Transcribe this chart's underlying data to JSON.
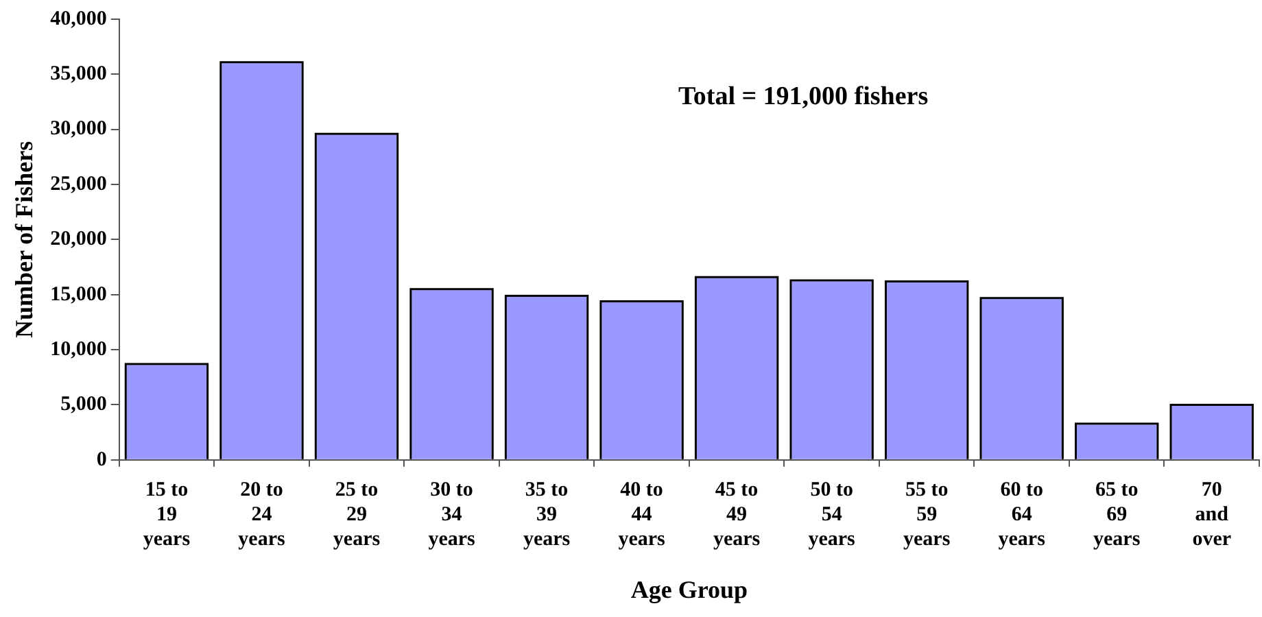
{
  "chart_data": {
    "type": "bar",
    "xlabel": "Age Group",
    "ylabel": "Number of Fishers",
    "categories": [
      "15 to 19 years",
      "20 to 24 years",
      "25 to 29 years",
      "30 to 34 years",
      "35 to 39 years",
      "40 to 44 years",
      "45 to 49 years",
      "50 to 54 years",
      "55 to 59 years",
      "60 to 64 years",
      "65 to 69 years",
      "70 and over"
    ],
    "values": [
      8600,
      36000,
      29500,
      15400,
      14800,
      14300,
      16500,
      16200,
      16100,
      14600,
      3200,
      4900
    ],
    "color": "#9999ff",
    "ylim": [
      0,
      40000
    ],
    "yticks": [
      0,
      {
        "value": 5000,
        "label": "5,000"
      },
      {
        "value": 10000,
        "label": "10,000"
      },
      {
        "value": 15000,
        "label": "15,000"
      },
      {
        "value": 20000,
        "label": "20,000"
      },
      {
        "value": 25000,
        "label": "25,000"
      },
      {
        "value": 30000,
        "label": "30,000"
      },
      {
        "value": 35000,
        "label": "35,000"
      },
      {
        "value": 40000,
        "label": "40,000"
      }
    ],
    "grid": false,
    "legend": false,
    "annotations": [
      "Total = 191,000 fishers"
    ]
  }
}
